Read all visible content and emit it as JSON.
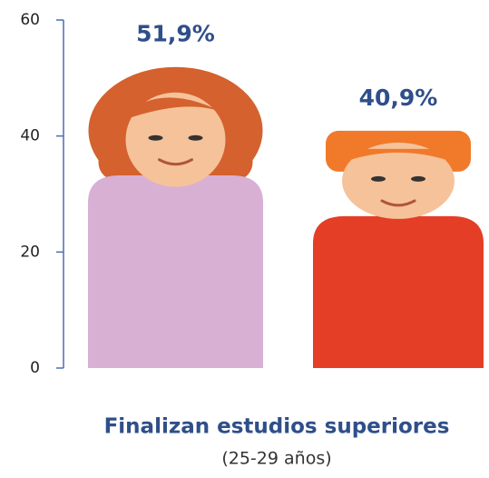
{
  "chart_data": {
    "type": "pictograph",
    "categories": [
      null,
      null
    ],
    "values": [
      51.9,
      40.9
    ],
    "value_labels": [
      "51,9%",
      "40,9%"
    ],
    "colors": [
      "#d8b0d4",
      "#e43e27"
    ],
    "ylim": [
      0,
      60
    ],
    "yticks": [
      0,
      20,
      40,
      60
    ],
    "xlabel": "Finalizan estudios superiores",
    "xlabel_note": "(25-29 años)"
  }
}
